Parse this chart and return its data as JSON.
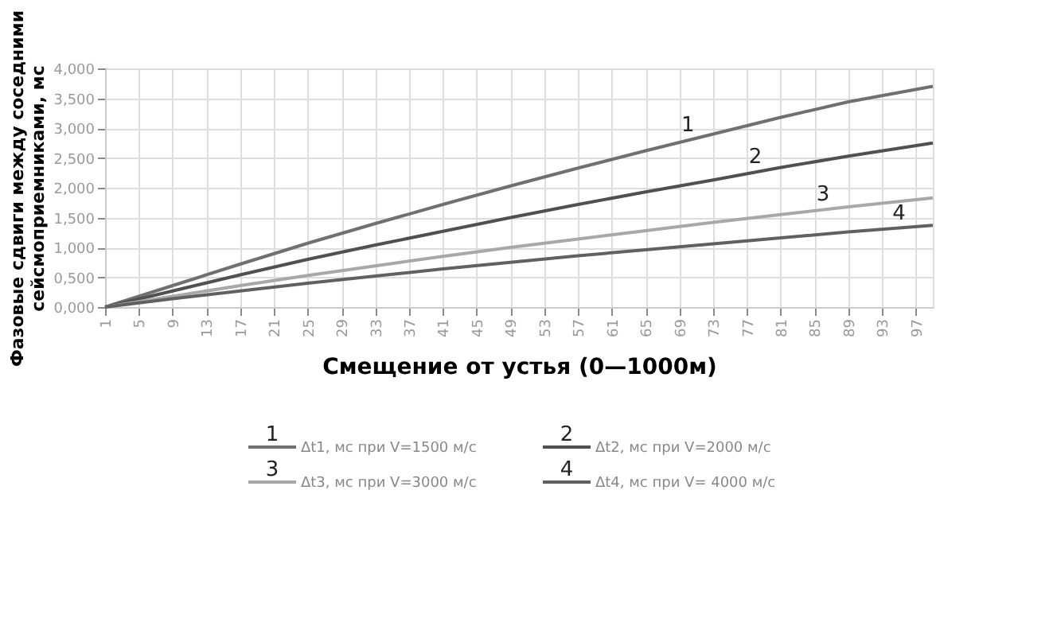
{
  "chart_data": {
    "type": "line",
    "xlabel": "Смещение от устья (0—1000м)",
    "ylabel": "Фазовые сдвиги между соседними сейсмоприемниками, мс",
    "x": [
      1,
      9,
      17,
      25,
      33,
      41,
      49,
      57,
      65,
      73,
      81,
      89,
      99
    ],
    "series": [
      {
        "name": "Δt1, мс при V=1500 м/с",
        "color": "#707070",
        "values": [
          0,
          0.36,
          0.72,
          1.07,
          1.4,
          1.72,
          2.03,
          2.33,
          2.62,
          2.9,
          3.18,
          3.44,
          3.7
        ]
      },
      {
        "name": "Δt2, мс при V=2000 м/с",
        "color": "#505050",
        "values": [
          0,
          0.27,
          0.54,
          0.8,
          1.04,
          1.27,
          1.5,
          1.72,
          1.93,
          2.13,
          2.34,
          2.53,
          2.75
        ]
      },
      {
        "name": "Δt3, мс при V=3000 м/с",
        "color": "#a8a8a8",
        "values": [
          0,
          0.18,
          0.36,
          0.53,
          0.69,
          0.85,
          1.0,
          1.14,
          1.28,
          1.42,
          1.55,
          1.68,
          1.83
        ]
      },
      {
        "name": "Δt4, мс при V= 4000 м/с",
        "color": "#606060",
        "values": [
          0,
          0.14,
          0.27,
          0.4,
          0.52,
          0.64,
          0.75,
          0.86,
          0.96,
          1.06,
          1.16,
          1.26,
          1.37
        ]
      }
    ],
    "annotations": [
      {
        "text": "1",
        "x": 70,
        "y": 2.79
      },
      {
        "text": "2",
        "x": 78,
        "y": 2.26
      },
      {
        "text": "3",
        "x": 86,
        "y": 1.63
      },
      {
        "text": "4",
        "x": 95,
        "y": 1.31
      }
    ],
    "xlim": [
      1,
      99
    ],
    "xticks": [
      1,
      5,
      9,
      13,
      17,
      21,
      25,
      29,
      33,
      37,
      41,
      45,
      49,
      53,
      57,
      61,
      65,
      69,
      73,
      77,
      81,
      85,
      89,
      93,
      97
    ],
    "ylim": [
      0,
      4
    ],
    "yticks": [
      {
        "value": 0,
        "label": "0,000"
      },
      {
        "value": 0.5,
        "label": "0,500"
      },
      {
        "value": 1,
        "label": "1,000"
      },
      {
        "value": 1.5,
        "label": "1,500"
      },
      {
        "value": 2,
        "label": "2,000"
      },
      {
        "value": 2.5,
        "label": "2,500"
      },
      {
        "value": 3,
        "label": "3,000"
      },
      {
        "value": 3.5,
        "label": "3,500"
      },
      {
        "value": 4,
        "label": "4,000"
      }
    ],
    "grid": true,
    "legend": "bottom",
    "marker": "none",
    "line_style": "solid"
  }
}
